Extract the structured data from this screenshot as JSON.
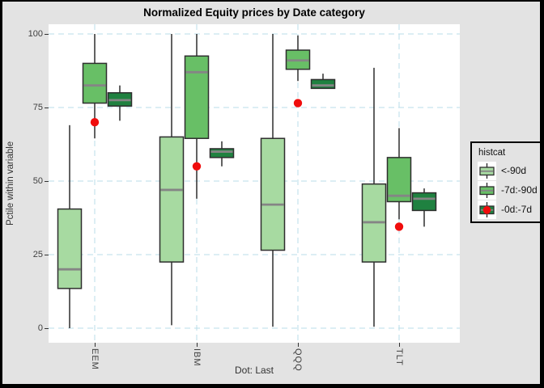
{
  "window": {
    "frame_color": "#000000",
    "background_color": "#e3e3e3"
  },
  "colors": {
    "panel_background": "#ffffff",
    "gridline": "#b9dde9",
    "box_border": "#2e2e2e",
    "median_line": "#858585",
    "tick": "#333333",
    "light_green": "#a7daa1",
    "medium_green": "#68bf66",
    "dark_green": "#1f8140",
    "dot_red": "#f00d0d"
  },
  "chart_data": {
    "type": "boxplot",
    "title": "Normalized Equity prices by Date category",
    "xlabel": "Dot: Last",
    "ylabel": "Pctile within variable",
    "categories": [
      "EEM",
      "IBM",
      "QQQ",
      "TLT"
    ],
    "yticks": [
      0,
      25,
      50,
      75,
      100
    ],
    "ylim": [
      0,
      100
    ],
    "grid": "dashed light-blue, horizontal at yticks and vertical at category centers",
    "legend_position": "right",
    "legend": {
      "title": "histcat",
      "entries": [
        {
          "label": "<-90d",
          "color": "#a7daa1",
          "dot": false
        },
        {
          "label": "-7d:-90d",
          "color": "#68bf66",
          "dot": false
        },
        {
          "label": "-0d:-7d",
          "color": "#1f8140",
          "dot": true
        }
      ]
    },
    "series": [
      {
        "name": "<-90d",
        "color": "#a7daa1",
        "stats_order": [
          "low",
          "q1",
          "median",
          "q3",
          "high"
        ],
        "stats": [
          [
            0,
            13.5,
            20,
            40.5,
            69
          ],
          [
            1,
            22.5,
            47,
            65,
            100
          ],
          [
            0.5,
            26.5,
            42,
            64.5,
            100
          ],
          [
            0.5,
            22.5,
            36,
            49,
            88.5
          ]
        ]
      },
      {
        "name": "-7d:-90d",
        "color": "#68bf66",
        "stats_order": [
          "low",
          "q1",
          "median",
          "q3",
          "high"
        ],
        "stats": [
          [
            64.5,
            76.5,
            82.5,
            90,
            100
          ],
          [
            44,
            64.5,
            87,
            92.5,
            100
          ],
          [
            84,
            88,
            91,
            94.5,
            99.5
          ],
          [
            37,
            43,
            45,
            58,
            68
          ]
        ]
      },
      {
        "name": "-0d:-7d",
        "color": "#1f8140",
        "stats_order": [
          "low",
          "q1",
          "median",
          "q3",
          "high"
        ],
        "stats": [
          [
            70.5,
            75.5,
            77.5,
            80,
            82.5
          ],
          [
            55,
            58,
            60,
            61,
            63.5
          ],
          [
            81.5,
            81.5,
            82.5,
            84.5,
            86.5
          ],
          [
            34.5,
            40,
            44,
            46,
            47.5
          ]
        ]
      }
    ],
    "dots": {
      "name": "Last",
      "color": "#f00d0d",
      "values": [
        70,
        55,
        76.5,
        34.5
      ]
    }
  }
}
